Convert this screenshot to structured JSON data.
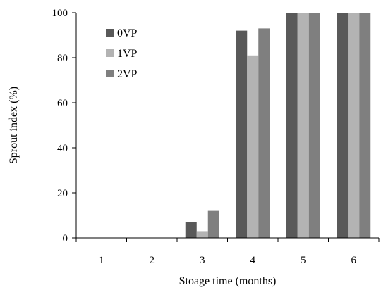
{
  "chart_data": {
    "type": "bar",
    "xlabel": "Stoage time (months)",
    "ylabel": "Sprout index (%)",
    "ylim": [
      0,
      100
    ],
    "yticks": [
      0,
      20,
      40,
      60,
      80,
      100
    ],
    "grid": false,
    "legend_position": "top-left",
    "categories": [
      "1",
      "2",
      "3",
      "4",
      "5",
      "6"
    ],
    "series": [
      {
        "name": "0VP",
        "color": "#595959",
        "values": [
          0,
          0,
          7,
          92,
          100,
          100
        ]
      },
      {
        "name": "1VP",
        "color": "#b3b3b3",
        "values": [
          0,
          0,
          3,
          81,
          100,
          100
        ]
      },
      {
        "name": "2VP",
        "color": "#7f7f7f",
        "values": [
          0,
          0,
          12,
          93,
          100,
          100
        ]
      }
    ]
  }
}
